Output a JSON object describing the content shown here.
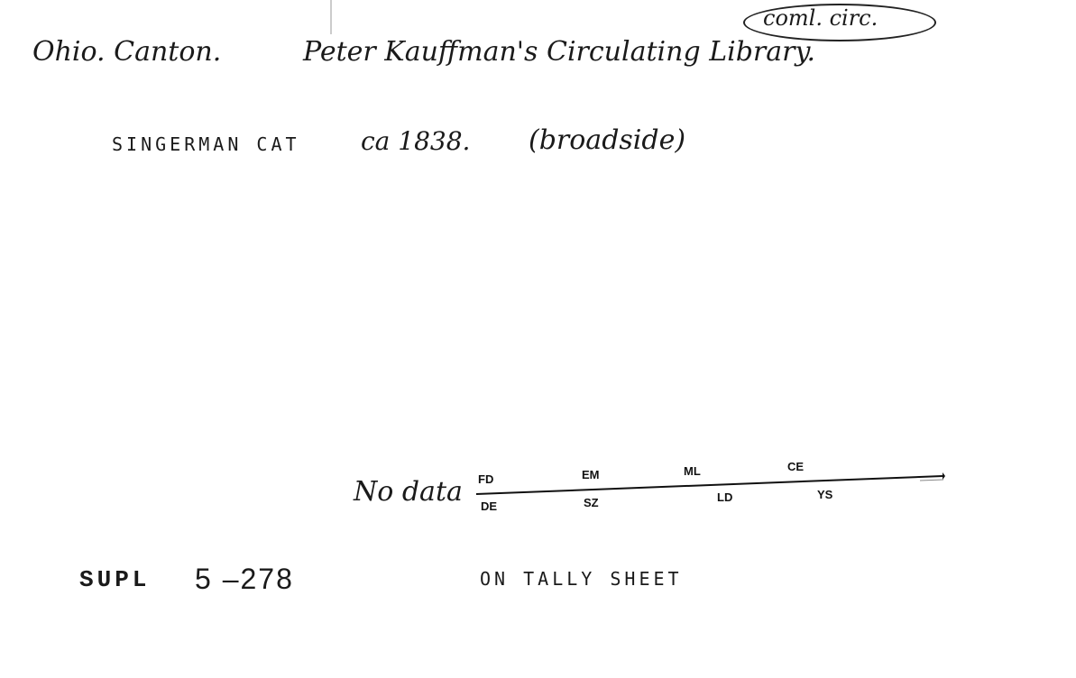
{
  "heading": {
    "place": "Ohio. Canton.",
    "library": "Peter Kauffman's Circulating Library.",
    "annotation": "coml. circ."
  },
  "source": {
    "catalog": "SINGERMAN CAT",
    "date": "ca 1838.",
    "note": "(broadside)"
  },
  "timeline": {
    "label": "No data",
    "top_codes": [
      "FD",
      "EM",
      "ML",
      "CE"
    ],
    "bottom_codes": [
      "DE",
      "SZ",
      "LD",
      "YS"
    ]
  },
  "footer": {
    "supl_label": "SUPL",
    "supl_number": "5 –278",
    "tally_note": "ON TALLY SHEET"
  }
}
